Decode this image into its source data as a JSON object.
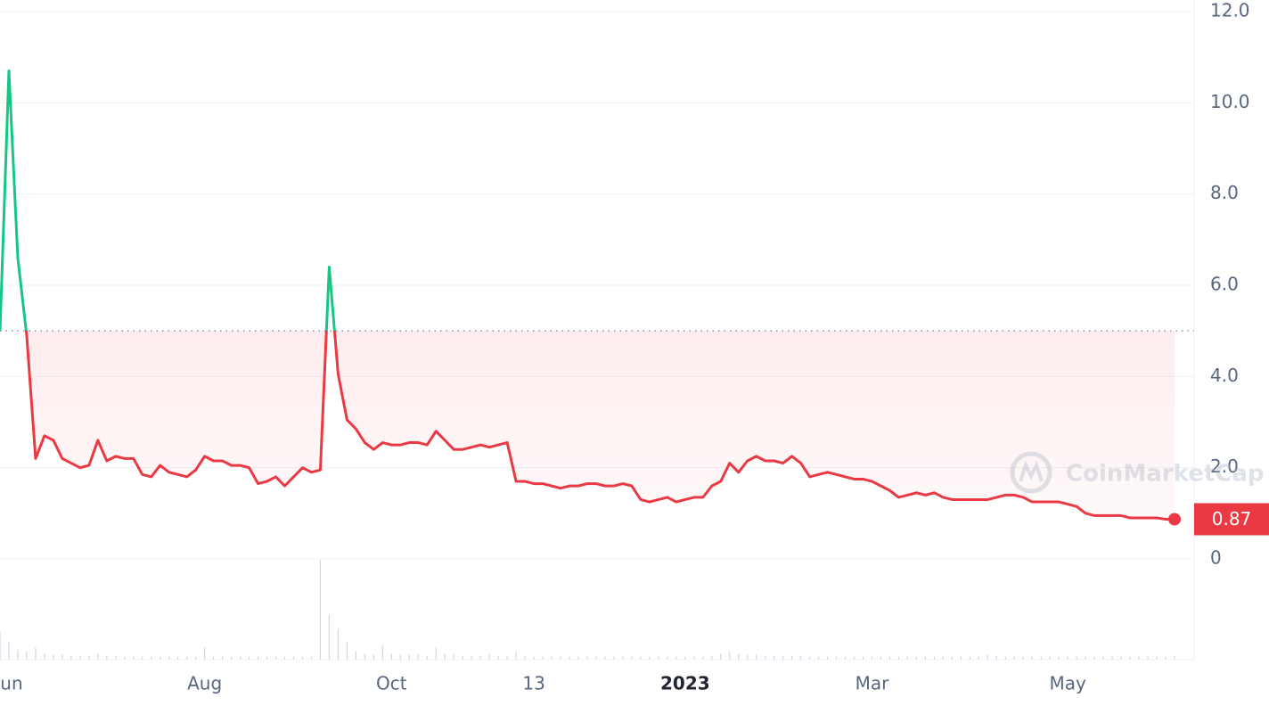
{
  "chart_data": {
    "type": "line",
    "categories": [
      null,
      "Jun",
      null,
      null,
      null,
      null,
      null,
      null,
      null,
      null,
      null,
      null,
      null,
      null,
      null,
      null,
      null,
      null,
      null,
      null,
      null,
      null,
      null,
      "Aug",
      null,
      null,
      null,
      null,
      null,
      null,
      null,
      null,
      null,
      null,
      null,
      null,
      null,
      null,
      null,
      null,
      null,
      null,
      null,
      null,
      "Oct",
      null,
      null,
      null,
      null,
      null,
      null,
      null,
      null,
      null,
      null,
      null,
      null,
      null,
      null,
      null,
      "13",
      null,
      null,
      null,
      null,
      null,
      null,
      null,
      null,
      null,
      null,
      null,
      null,
      null,
      null,
      null,
      null,
      "2023",
      null,
      null,
      null,
      null,
      null,
      null,
      null,
      null,
      null,
      null,
      null,
      null,
      null,
      null,
      null,
      null,
      null,
      null,
      null,
      null,
      "Mar",
      null,
      null,
      null,
      null,
      null,
      null,
      null,
      null,
      null,
      null,
      null,
      null,
      null,
      null,
      null,
      null,
      null,
      null,
      null,
      null,
      null,
      "May",
      null,
      null,
      null,
      null,
      null,
      null,
      null,
      null,
      null,
      null,
      null,
      null
    ],
    "values": [
      5.0,
      10.7,
      6.6,
      4.9,
      2.2,
      2.7,
      2.6,
      2.2,
      2.1,
      2.0,
      2.05,
      2.6,
      2.15,
      2.25,
      2.2,
      2.2,
      1.85,
      1.8,
      2.05,
      1.9,
      1.85,
      1.8,
      1.95,
      2.25,
      2.15,
      2.15,
      2.05,
      2.05,
      2.0,
      1.65,
      1.7,
      1.8,
      1.6,
      1.8,
      2.0,
      1.9,
      1.95,
      6.4,
      4.05,
      3.05,
      2.85,
      2.55,
      2.4,
      2.55,
      2.5,
      2.5,
      2.55,
      2.55,
      2.5,
      2.8,
      2.6,
      2.4,
      2.4,
      2.45,
      2.5,
      2.45,
      2.5,
      2.55,
      1.7,
      1.7,
      1.65,
      1.65,
      1.6,
      1.55,
      1.6,
      1.6,
      1.65,
      1.65,
      1.6,
      1.6,
      1.65,
      1.6,
      1.3,
      1.25,
      1.3,
      1.35,
      1.25,
      1.3,
      1.35,
      1.35,
      1.6,
      1.7,
      2.1,
      1.9,
      2.15,
      2.25,
      2.15,
      2.15,
      2.1,
      2.25,
      2.1,
      1.8,
      1.85,
      1.9,
      1.85,
      1.8,
      1.75,
      1.75,
      1.7,
      1.6,
      1.5,
      1.35,
      1.4,
      1.45,
      1.4,
      1.45,
      1.35,
      1.3,
      1.3,
      1.3,
      1.3,
      1.3,
      1.35,
      1.4,
      1.4,
      1.35,
      1.25,
      1.25,
      1.25,
      1.25,
      1.2,
      1.15,
      1.0,
      0.95,
      0.95,
      0.95,
      0.95,
      0.9,
      0.9,
      0.9,
      0.9,
      0.87,
      0.87
    ],
    "volume": [
      28,
      18,
      10,
      8,
      12,
      6,
      5,
      5,
      4,
      4,
      4,
      6,
      4,
      4,
      3,
      3,
      3,
      3,
      3,
      3,
      3,
      3,
      3,
      12,
      3,
      3,
      3,
      3,
      3,
      3,
      3,
      3,
      3,
      3,
      3,
      3,
      100,
      45,
      30,
      18,
      8,
      6,
      5,
      14,
      6,
      5,
      5,
      5,
      4,
      12,
      6,
      5,
      4,
      4,
      4,
      5,
      4,
      4,
      8,
      4,
      3,
      3,
      3,
      3,
      3,
      3,
      3,
      3,
      3,
      3,
      3,
      3,
      3,
      3,
      3,
      3,
      3,
      3,
      3,
      3,
      4,
      6,
      8,
      6,
      5,
      5,
      4,
      4,
      4,
      4,
      4,
      3,
      3,
      3,
      3,
      3,
      3,
      3,
      3,
      3,
      3,
      3,
      3,
      3,
      3,
      3,
      3,
      3,
      3,
      3,
      3,
      5,
      4,
      3,
      3,
      3,
      3,
      3,
      3,
      3,
      3,
      3,
      3,
      3,
      3,
      3,
      3,
      3,
      3,
      3,
      3,
      3,
      4
    ],
    "volume_lim": [
      0,
      100
    ],
    "baseline": 5.0,
    "current_price": 0.87,
    "up_color": "#16c784",
    "down_color": "#ea3943",
    "ylim": [
      0,
      12
    ],
    "yticks": [
      0,
      {
        "value": 2,
        "label": "2.0"
      },
      {
        "value": 4,
        "label": "4.0"
      },
      {
        "value": 6,
        "label": "6.0"
      },
      {
        "value": 8,
        "label": "8.0"
      },
      {
        "value": 10,
        "label": "10.0"
      },
      {
        "value": 12,
        "label": "12.0"
      }
    ],
    "grid": true,
    "watermark": "CoinMarketCap"
  }
}
